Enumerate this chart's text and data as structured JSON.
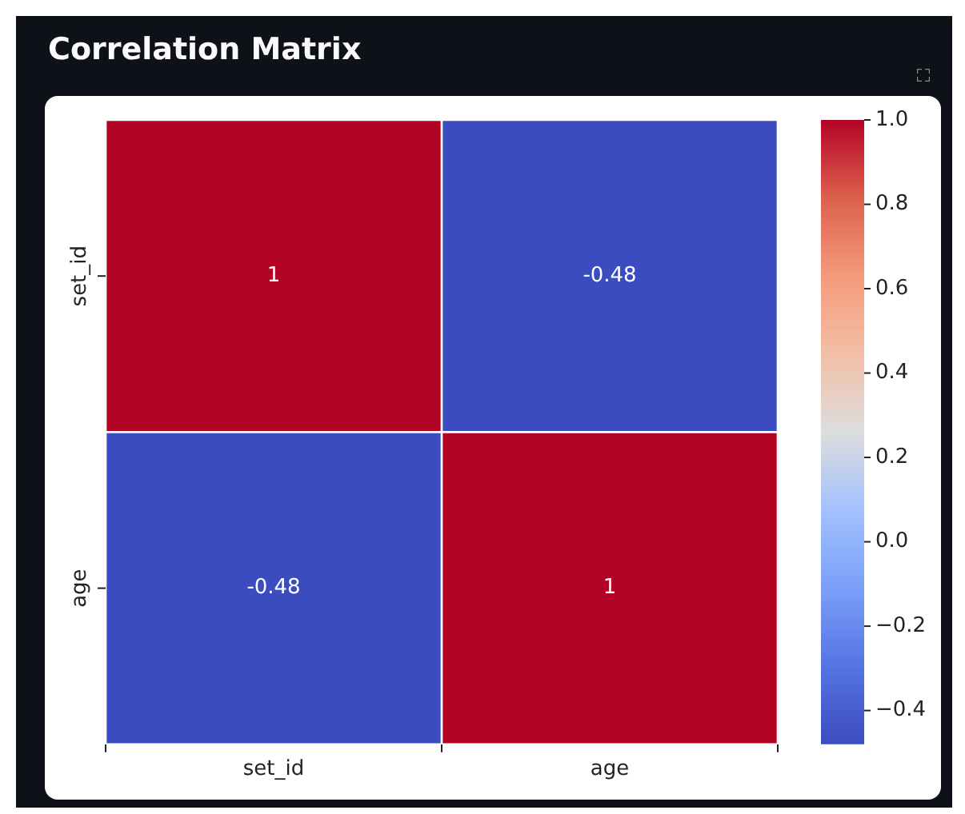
{
  "chart_data": {
    "type": "heatmap",
    "title": "Correlation Matrix",
    "categories": [
      "set_id",
      "age"
    ],
    "y_categories": [
      "set_id",
      "age"
    ],
    "cells": [
      [
        1,
        -0.48
      ],
      [
        -0.48,
        1
      ]
    ],
    "cell_labels": [
      [
        "1",
        "-0.48"
      ],
      [
        "-0.48",
        "1"
      ]
    ],
    "clim": [
      -0.48,
      1.0
    ],
    "cticks": [
      {
        "value": 1.0,
        "label": "1.0"
      },
      {
        "value": 0.8,
        "label": "0.8"
      },
      {
        "value": 0.6,
        "label": "0.6"
      },
      {
        "value": 0.4,
        "label": "0.4"
      },
      {
        "value": 0.2,
        "label": "0.2"
      },
      {
        "value": 0.0,
        "label": "0.0"
      },
      {
        "value": -0.2,
        "label": "−0.2"
      },
      {
        "value": -0.4,
        "label": "−0.4"
      }
    ]
  }
}
